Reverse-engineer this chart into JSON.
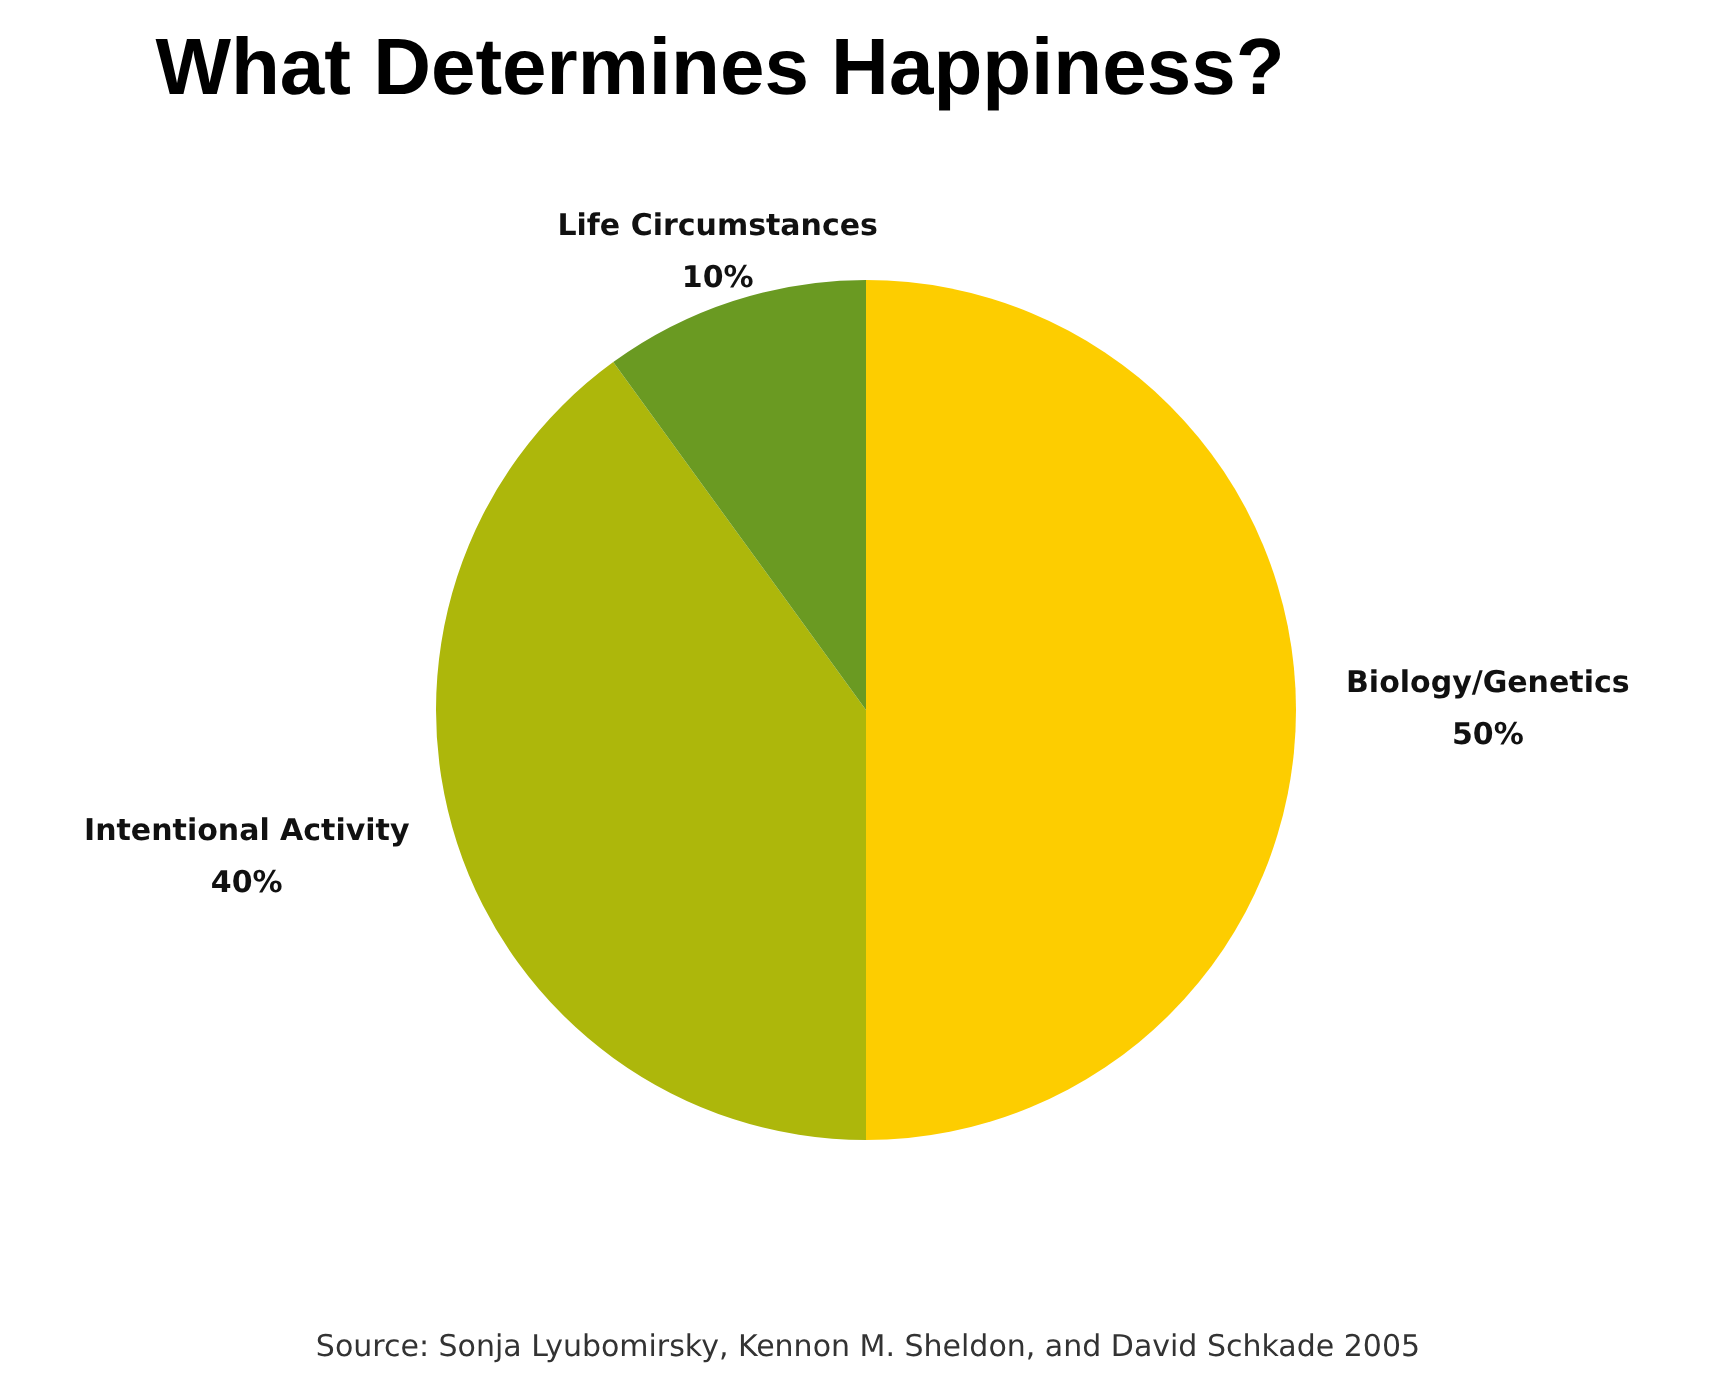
{
  "chart_data": {
    "type": "pie",
    "title": "What Determines Happiness?",
    "categories": [
      "Biology/Genetics",
      "Intentional Activity",
      "Life Circumstances"
    ],
    "values": [
      50,
      40,
      10
    ],
    "value_labels": [
      "50%",
      "40%",
      "10%"
    ],
    "colors": [
      "#fdcd00",
      "#adb70b",
      "#6a9a22"
    ],
    "legend": false,
    "annotations": [
      "Source: Sonja Lyubomirsky, Kennon M. Sheldon, and David Schkade 2005"
    ]
  }
}
